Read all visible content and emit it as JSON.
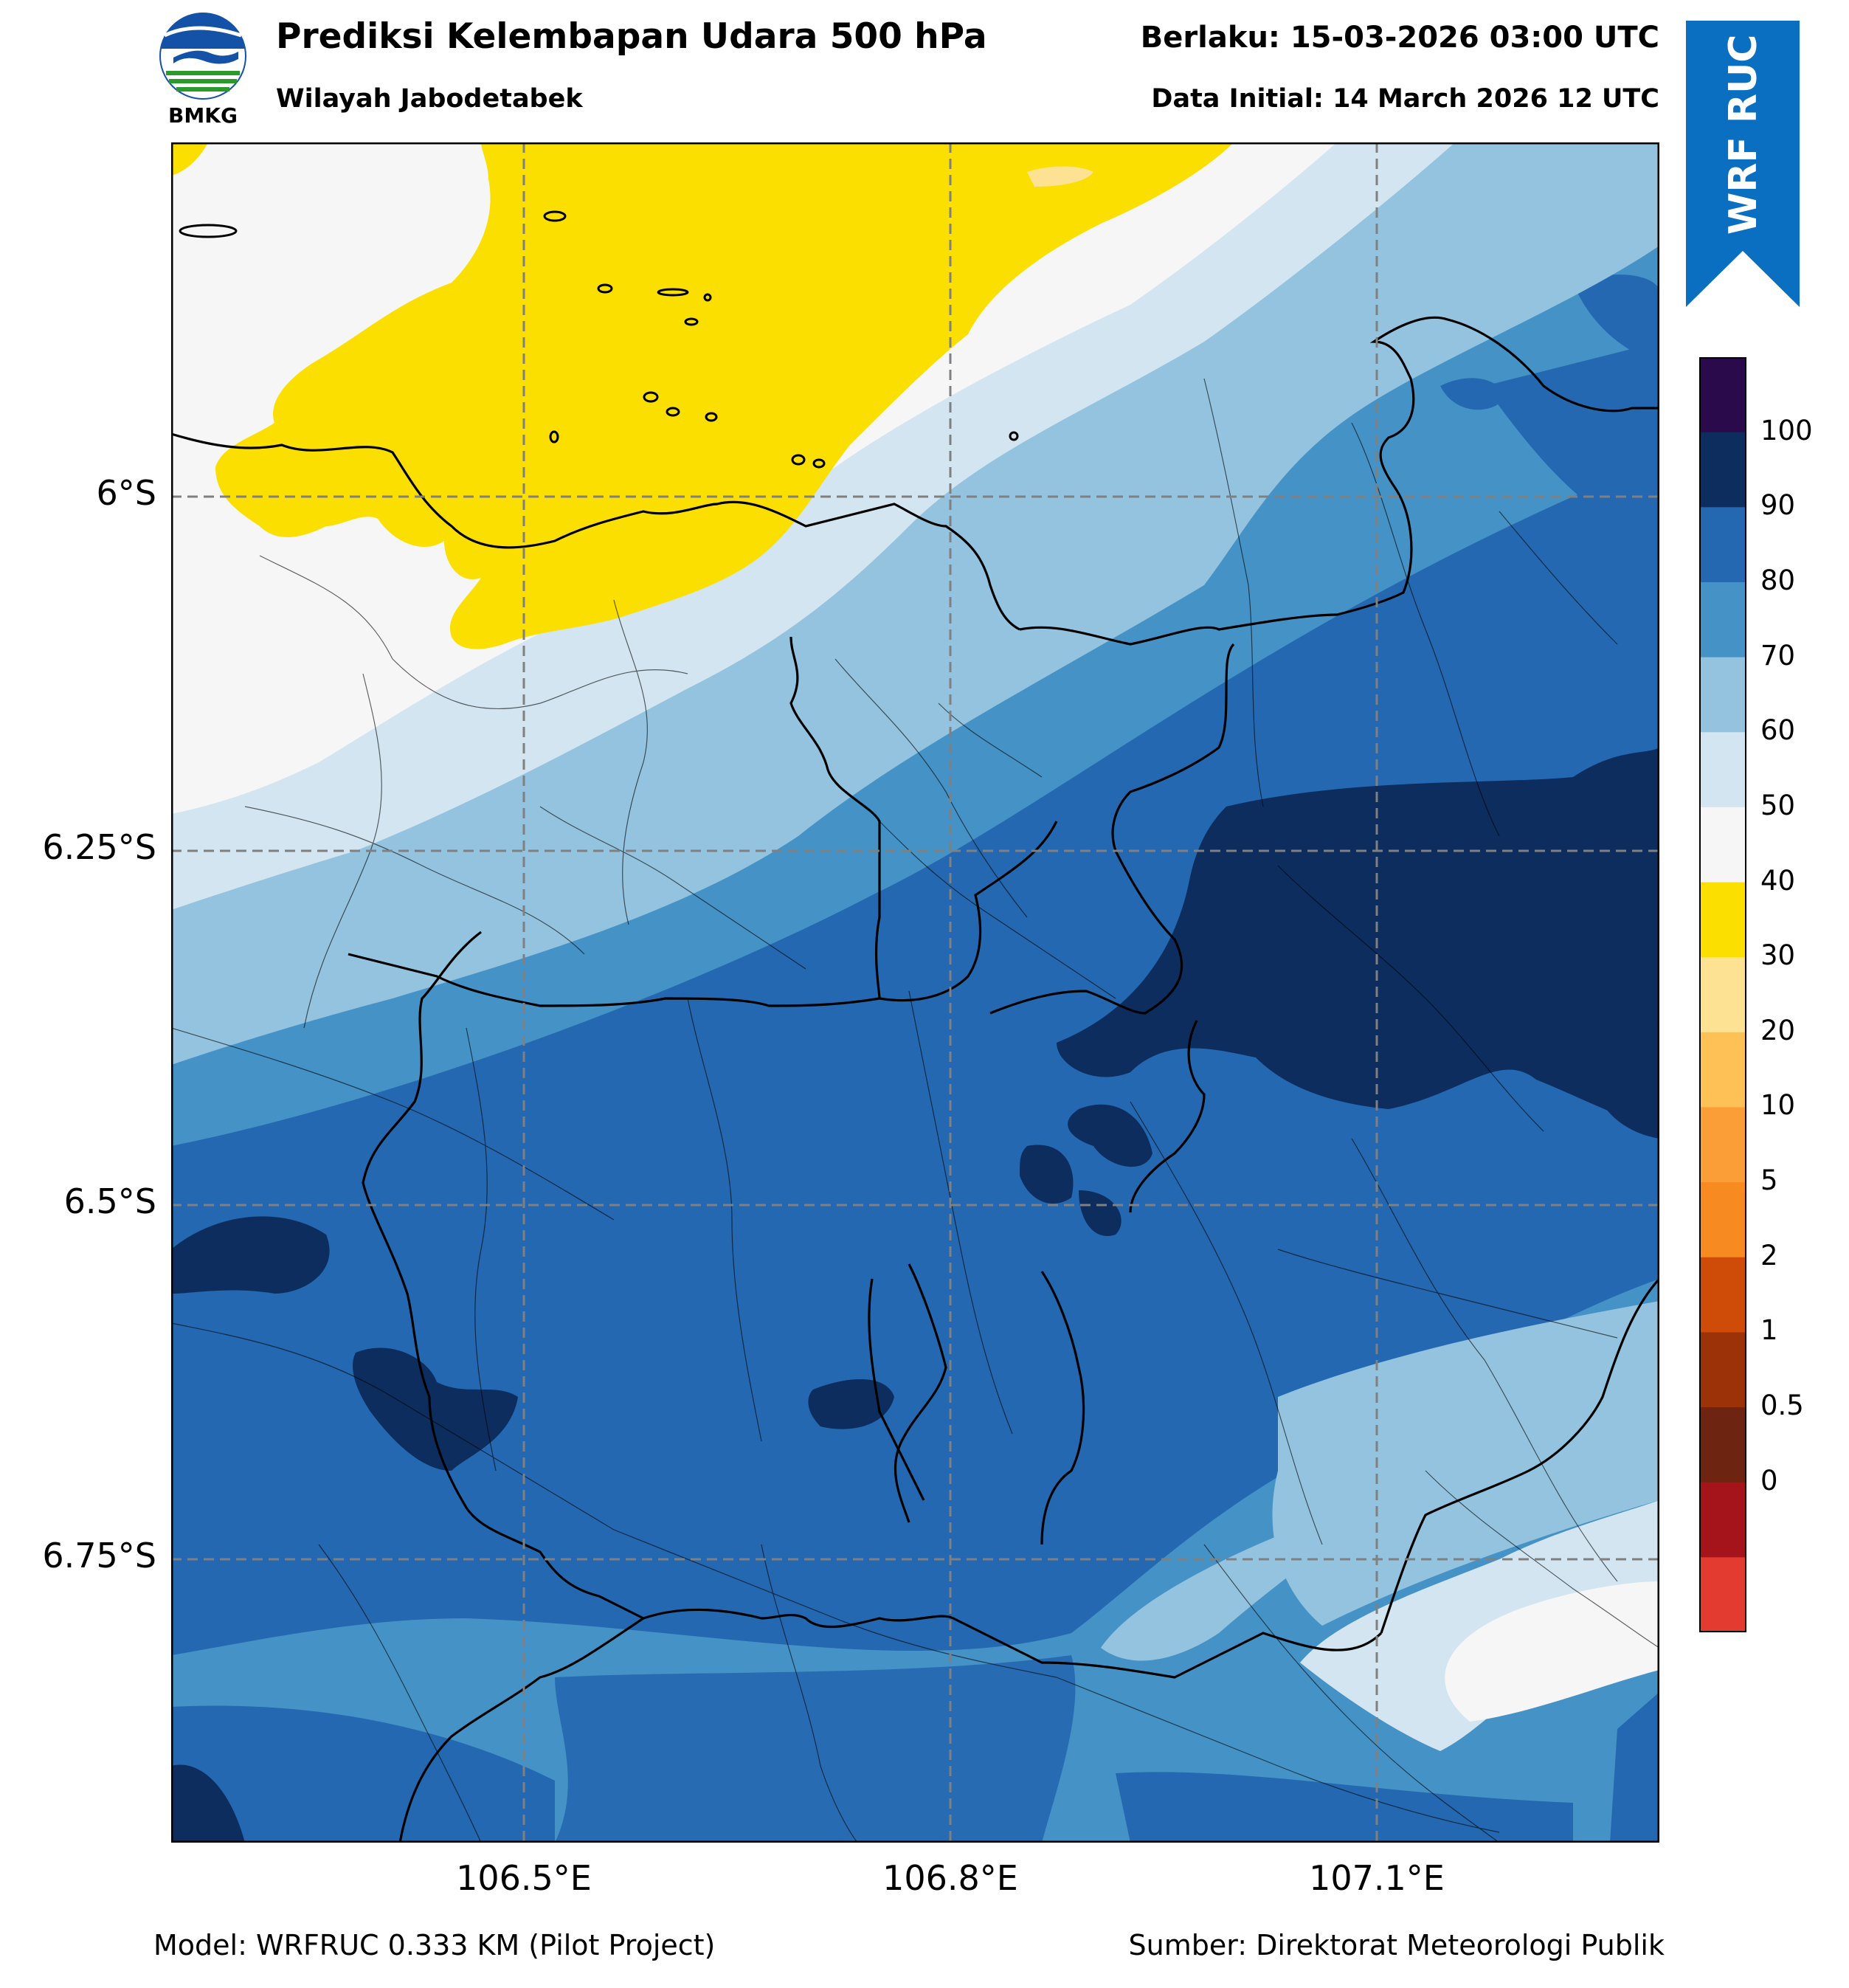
{
  "header": {
    "title": "Prediksi Kelembapan Udara 500 hPa",
    "subtitle": "Wilayah Jabodetabek",
    "valid_time": "Berlaku: 15-03-2026 03:00 UTC",
    "initial_time": "Data Initial: 14 March 2026 12 UTC"
  },
  "logo": {
    "text": "BMKG",
    "icon": "bmkg-logo-icon"
  },
  "ribbon": {
    "text": "WRF RUC",
    "color": "#0a6fc0"
  },
  "axes": {
    "lat_labels": [
      "6°S",
      "6.25°S",
      "6.5°S",
      "6.75°S"
    ],
    "lon_labels": [
      "106.5°E",
      "106.8°E",
      "107.1°E"
    ]
  },
  "colorbar": {
    "labels": [
      "100",
      "90",
      "80",
      "70",
      "60",
      "50",
      "40",
      "30",
      "20",
      "10",
      "5",
      "2",
      "1",
      "0.5",
      "0"
    ],
    "colors": [
      "#2a0a4a",
      "#0d2d5e",
      "#2368b0",
      "#4592c6",
      "#93c3de",
      "#d2e5f0",
      "#f6f6f6",
      "#fadf00",
      "#fde294",
      "#fdc155",
      "#fc9e37",
      "#f88a22",
      "#cf4c08",
      "#9b3208",
      "#6d2410",
      "#a5141a",
      "#e33b30"
    ]
  },
  "footer": {
    "model": "Model: WRFRUC 0.333 KM (Pilot Project)",
    "source": "Sumber: Direktorat Meteorologi Publik"
  }
}
